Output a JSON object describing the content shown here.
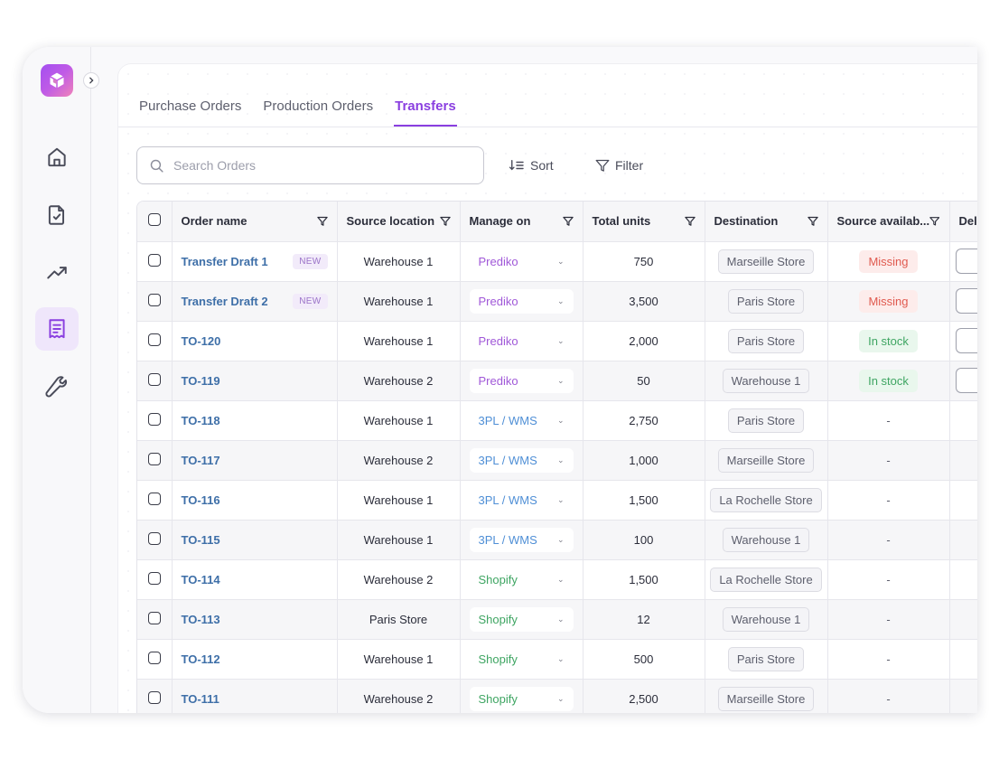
{
  "app": {
    "logo_icon": "cube-logo-icon",
    "accent_color": "#8a3fe0"
  },
  "sidebar": {
    "items": [
      {
        "name": "home",
        "icon": "home-icon",
        "active": false
      },
      {
        "name": "documents",
        "icon": "document-check-icon",
        "active": false
      },
      {
        "name": "analytics",
        "icon": "trend-up-icon",
        "active": false
      },
      {
        "name": "orders",
        "icon": "receipt-icon",
        "active": true
      },
      {
        "name": "tools",
        "icon": "wrench-icon",
        "active": false
      }
    ]
  },
  "tabs": [
    {
      "label": "Purchase Orders",
      "active": false
    },
    {
      "label": "Production Orders",
      "active": false
    },
    {
      "label": "Transfers",
      "active": true
    }
  ],
  "search": {
    "placeholder": "Search Orders",
    "value": ""
  },
  "toolbar": {
    "sort_label": "Sort",
    "filter_label": "Filter"
  },
  "table": {
    "columns": [
      "Order name",
      "Source location",
      "Manage on",
      "Total units",
      "Destination",
      "Source availab...",
      "Del"
    ],
    "rows": [
      {
        "name": "Transfer Draft 1",
        "badge": "NEW",
        "source": "Warehouse 1",
        "manage": "Prediko",
        "units": "750",
        "destination": "Marseille Store",
        "availability": "Missing"
      },
      {
        "name": "Transfer Draft 2",
        "badge": "NEW",
        "source": "Warehouse 1",
        "manage": "Prediko",
        "units": "3,500",
        "destination": "Paris Store",
        "availability": "Missing"
      },
      {
        "name": "TO-120",
        "badge": "",
        "source": "Warehouse 1",
        "manage": "Prediko",
        "units": "2,000",
        "destination": "Paris Store",
        "availability": "In stock"
      },
      {
        "name": "TO-119",
        "badge": "",
        "source": "Warehouse 2",
        "manage": "Prediko",
        "units": "50",
        "destination": "Warehouse 1",
        "availability": "In stock"
      },
      {
        "name": "TO-118",
        "badge": "",
        "source": "Warehouse 1",
        "manage": "3PL / WMS",
        "units": "2,750",
        "destination": "Paris Store",
        "availability": "-"
      },
      {
        "name": "TO-117",
        "badge": "",
        "source": "Warehouse 2",
        "manage": "3PL / WMS",
        "units": "1,000",
        "destination": "Marseille Store",
        "availability": "-"
      },
      {
        "name": "TO-116",
        "badge": "",
        "source": "Warehouse 1",
        "manage": "3PL / WMS",
        "units": "1,500",
        "destination": "La Rochelle Store",
        "availability": "-"
      },
      {
        "name": "TO-115",
        "badge": "",
        "source": "Warehouse 1",
        "manage": "3PL / WMS",
        "units": "100",
        "destination": "Warehouse 1",
        "availability": "-"
      },
      {
        "name": "TO-114",
        "badge": "",
        "source": "Warehouse 2",
        "manage": "Shopify",
        "units": "1,500",
        "destination": "La Rochelle Store",
        "availability": "-"
      },
      {
        "name": "TO-113",
        "badge": "",
        "source": "Paris Store",
        "manage": "Shopify",
        "units": "12",
        "destination": "Warehouse 1",
        "availability": "-"
      },
      {
        "name": "TO-112",
        "badge": "",
        "source": "Warehouse 1",
        "manage": "Shopify",
        "units": "500",
        "destination": "Paris Store",
        "availability": "-"
      },
      {
        "name": "TO-111",
        "badge": "",
        "source": "Warehouse 2",
        "manage": "Shopify",
        "units": "2,500",
        "destination": "Marseille Store",
        "availability": "-"
      }
    ]
  },
  "colors": {
    "prediko": "#a058d8",
    "wms": "#4f8fd6",
    "shopify": "#3ea562",
    "missing": "#e05a4f",
    "in_stock": "#3ea562"
  }
}
